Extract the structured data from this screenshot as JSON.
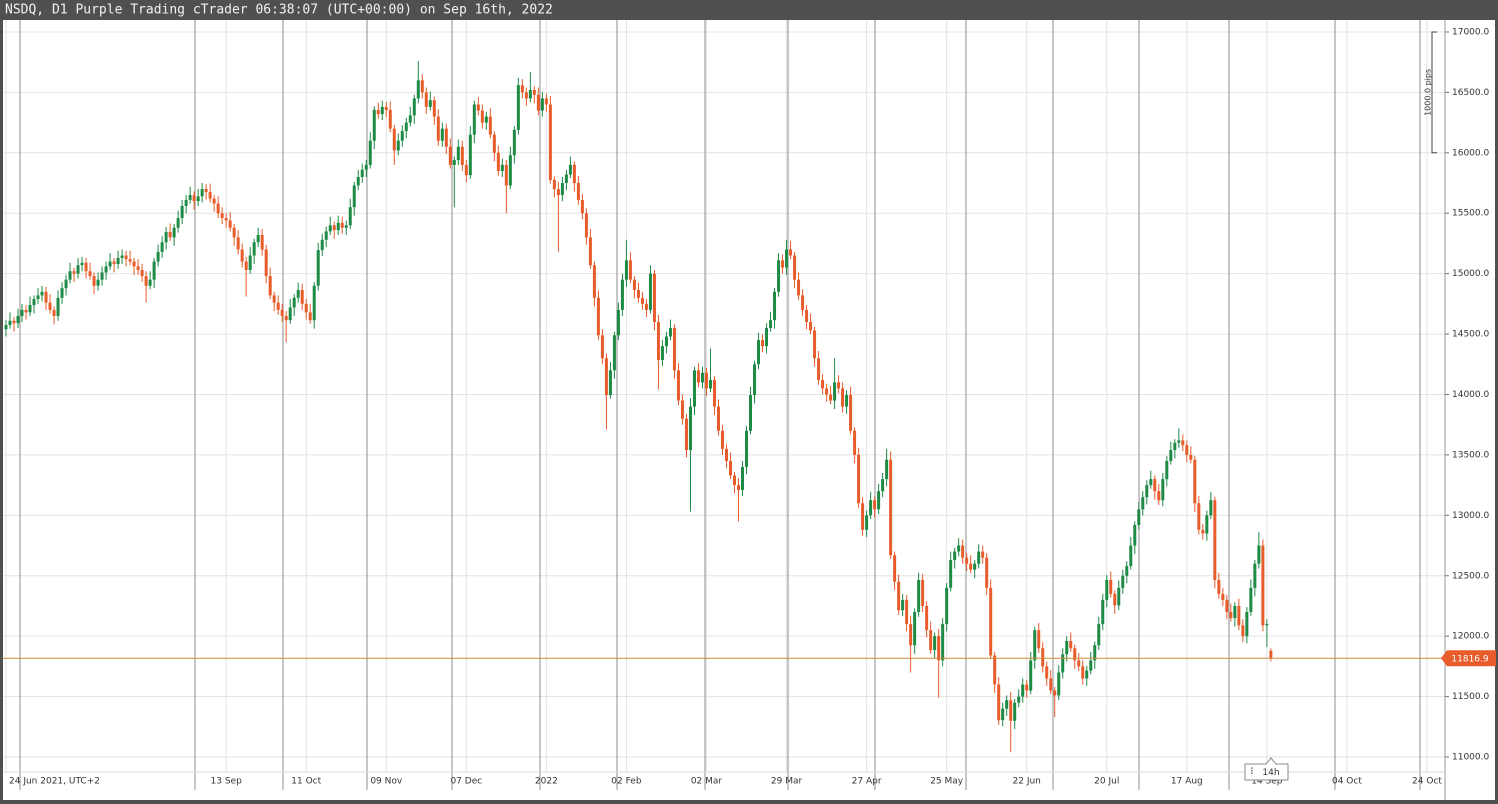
{
  "chart_data": {
    "type": "candlestick",
    "title": "NSDQ, D1 Purple Trading cTrader 06:38:07 (UTC+00:00) on Sep 16th, 2022",
    "colors": {
      "up": "#1d8a45",
      "down": "#e85c2b",
      "last_price": "#d08a36"
    },
    "grid": true,
    "xlim": [
      -0.75,
      359.5
    ],
    "ylim": [
      10876,
      17099
    ],
    "yticks": [
      {
        "value": 17000,
        "label": "17000.0"
      },
      {
        "value": 16500,
        "label": "16500.0"
      },
      {
        "value": 16000,
        "label": "16000.0"
      },
      {
        "value": 15500,
        "label": "15500.0"
      },
      {
        "value": 15000,
        "label": "15000.0"
      },
      {
        "value": 14500,
        "label": "14500.0"
      },
      {
        "value": 14000,
        "label": "14000.0"
      },
      {
        "value": 13500,
        "label": "13500.0"
      },
      {
        "value": 13000,
        "label": "13000.0"
      },
      {
        "value": 12500,
        "label": "12500.0"
      },
      {
        "value": 12000,
        "label": "12000.0"
      },
      {
        "value": 11500,
        "label": "11500.0"
      },
      {
        "value": 11000,
        "label": "11000.0"
      }
    ],
    "xticks": [
      {
        "value": 0,
        "label": "24 Jun 2021, UTC+2"
      },
      {
        "value": 55,
        "label": "13 Sep"
      },
      {
        "value": 75,
        "label": "11 Oct"
      },
      {
        "value": 95,
        "label": "09 Nov"
      },
      {
        "value": 115,
        "label": "07 Dec"
      },
      {
        "value": 135,
        "label": "2022"
      },
      {
        "value": 155,
        "label": "02 Feb"
      },
      {
        "value": 175,
        "label": "02 Mar"
      },
      {
        "value": 195,
        "label": "29 Mar"
      },
      {
        "value": 215,
        "label": "27 Apr"
      },
      {
        "value": 235,
        "label": "25 May"
      },
      {
        "value": 255,
        "label": "22 Jun"
      },
      {
        "value": 275,
        "label": "20 Jul"
      },
      {
        "value": 295,
        "label": "17 Aug"
      },
      {
        "value": 315,
        "label": "14 Sep"
      },
      {
        "value": 335,
        "label": "04 Oct"
      },
      {
        "value": 355,
        "label": "24 Oct"
      }
    ],
    "last_price": 11816.9,
    "scale_label": "1000.0 pips",
    "countdown": "14h",
    "open": [
      14540,
      14575,
      14610,
      14590,
      14650,
      14700,
      14680,
      14740,
      14790,
      14820,
      14850,
      14760,
      14700,
      14650,
      14800,
      14880,
      14950,
      15020,
      15000,
      15070,
      15090,
      15020,
      14980,
      14900,
      14950,
      15010,
      15060,
      15100,
      15080,
      15130,
      15150,
      15120,
      15100,
      15060,
      15030,
      14980,
      14900,
      14950,
      15100,
      15180,
      15260,
      15345,
      15300,
      15380,
      15460,
      15560,
      15610,
      15650,
      15600,
      15640,
      15700,
      15675,
      15620,
      15580,
      15500,
      15460,
      15440,
      15380,
      15300,
      15200,
      15100,
      15030,
      15150,
      15260,
      15320,
      15200,
      14980,
      14820,
      14760,
      14700,
      14650,
      14615,
      14720,
      14800,
      14865,
      14750,
      14680,
      14615,
      14900,
      15195,
      15280,
      15350,
      15400,
      15360,
      15420,
      15380,
      15400,
      15550,
      15730,
      15800,
      15860,
      15900,
      16100,
      16355,
      16320,
      16380,
      16355,
      16200,
      16020,
      16100,
      16180,
      16250,
      16310,
      16450,
      16600,
      16500,
      16380,
      16435,
      16300,
      16100,
      16200,
      16050,
      15900,
      15940,
      16050,
      15900,
      15815,
      16150,
      16400,
      16350,
      16250,
      16300,
      16150,
      16000,
      15850,
      15900,
      15730,
      15980,
      16190,
      16560,
      16500,
      16450,
      16520,
      16480,
      16350,
      16450,
      16400,
      15775,
      15700,
      15650,
      15750,
      15820,
      15900,
      15750,
      15610,
      15500,
      15300,
      15070,
      14800,
      14490,
      14300,
      13995,
      14200,
      14490,
      14700,
      14950,
      15110,
      14950,
      14865,
      14800,
      14750,
      14700,
      15000,
      14600,
      14285,
      14400,
      14480,
      14550,
      14200,
      13950,
      13800,
      13540,
      13900,
      14200,
      14100,
      14180,
      14050,
      14120,
      13900,
      13700,
      13550,
      13450,
      13330,
      13250,
      13210,
      13400,
      13700,
      13995,
      14250,
      14450,
      14400,
      14550,
      14615,
      14850,
      15110,
      15050,
      15200,
      15150,
      14950,
      14820,
      14700,
      14600,
      14530,
      14300,
      14120,
      14050,
      14000,
      13950,
      14100,
      14050,
      13900,
      13995,
      13700,
      13500,
      13100,
      12880,
      13000,
      13125,
      13050,
      13200,
      13300,
      13460,
      12670,
      12450,
      12215,
      12300,
      12100,
      11925,
      12200,
      12465,
      12250,
      12050,
      11885,
      12000,
      11800,
      12100,
      12400,
      12630,
      12700,
      12750,
      12650,
      12600,
      12550,
      12600,
      12700,
      12650,
      12400,
      11840,
      11600,
      11305,
      11400,
      11470,
      11300,
      11450,
      11500,
      11600,
      11550,
      11800,
      12050,
      11900,
      11750,
      11650,
      11550,
      11510,
      11700,
      11850,
      11960,
      11900,
      11800,
      11750,
      11650,
      11715,
      11800,
      11925,
      12100,
      12300,
      12465,
      12350,
      12255,
      12400,
      12500,
      12580,
      12750,
      12920,
      13050,
      13150,
      13250,
      13300,
      13200,
      13125,
      13300,
      13450,
      13540,
      13600,
      13620,
      13580,
      13500,
      13460,
      13100,
      12880,
      12850,
      13000,
      13125,
      12465,
      12350,
      12300,
      12200,
      12150,
      12250,
      12090,
      12000,
      12200,
      12400,
      12600,
      12750,
      12090,
      11880
    ],
    "high": [
      14615,
      14680,
      14640,
      14710,
      14750,
      14740,
      14810,
      14820,
      14880,
      14900,
      14890,
      14830,
      14730,
      14860,
      14930,
      14990,
      15090,
      15050,
      15130,
      15140,
      15130,
      15090,
      15010,
      15010,
      15060,
      15100,
      15170,
      15130,
      15190,
      15200,
      15190,
      15190,
      15130,
      15120,
      15080,
      15020,
      15020,
      15130,
      15240,
      15310,
      15385,
      15415,
      15410,
      15520,
      15610,
      15650,
      15720,
      15680,
      15700,
      15750,
      15740,
      15745,
      15650,
      15640,
      15550,
      15500,
      15510,
      15410,
      15360,
      15250,
      15140,
      15220,
      15290,
      15380,
      15370,
      15240,
      15050,
      14850,
      14820,
      14750,
      14690,
      14790,
      14830,
      14925,
      14915,
      14790,
      14750,
      14930,
      15255,
      15330,
      15390,
      15470,
      15430,
      15480,
      15470,
      15440,
      15620,
      15760,
      15860,
      15910,
      15940,
      16170,
      16385,
      16415,
      16430,
      16420,
      16425,
      16230,
      16160,
      16230,
      16290,
      16380,
      16480,
      16760,
      16650,
      16540,
      16505,
      16465,
      16360,
      16250,
      16240,
      16120,
      15970,
      16110,
      16100,
      15940,
      16220,
      16430,
      16460,
      16400,
      16340,
      16370,
      16180,
      16060,
      15950,
      15940,
      16050,
      16220,
      16620,
      16610,
      16540,
      16670,
      16550,
      16540,
      16500,
      16490,
      16470,
      15805,
      15760,
      15800,
      15860,
      15970,
      15930,
      15810,
      15660,
      15540,
      15370,
      15100,
      14860,
      14540,
      14340,
      14270,
      14520,
      14760,
      15000,
      15280,
      15180,
      14980,
      14925,
      14850,
      14790,
      15070,
      15030,
      14660,
      14450,
      14520,
      14620,
      14580,
      14260,
      14000,
      13840,
      13970,
      14230,
      14260,
      14230,
      14220,
      14380,
      14150,
      13960,
      13750,
      13590,
      13520,
      13360,
      13310,
      13450,
      13740,
      14065,
      14280,
      14510,
      14500,
      14590,
      14685,
      14880,
      15170,
      15160,
      15280,
      15270,
      15180,
      15010,
      14870,
      14740,
      14670,
      14560,
      14360,
      14170,
      14090,
      14070,
      14300,
      14160,
      14100,
      14035,
      14065,
      13730,
      13560,
      13150,
      13040,
      13195,
      13155,
      13260,
      13350,
      13550,
      13530,
      12700,
      12510,
      12350,
      12340,
      12170,
      12230,
      12525,
      12515,
      12290,
      12120,
      12030,
      12060,
      12150,
      12440,
      12700,
      12730,
      12810,
      12800,
      12690,
      12670,
      12630,
      12760,
      12750,
      12690,
      12470,
      11870,
      11660,
      11450,
      11510,
      11540,
      11480,
      11560,
      11650,
      11640,
      11870,
      12080,
      12110,
      11950,
      11790,
      11720,
      11580,
      11760,
      11900,
      12000,
      12030,
      11930,
      11860,
      11800,
      11755,
      11870,
      11955,
      12160,
      12350,
      12505,
      12535,
      12380,
      12460,
      12550,
      12620,
      12820,
      12950,
      13110,
      13200,
      13290,
      13370,
      13330,
      13260,
      13350,
      13490,
      13610,
      13630,
      13720,
      13670,
      13620,
      13570,
      13490,
      13160,
      12930,
      13040,
      13195,
      13155,
      12525,
      12400,
      12340,
      12270,
      12280,
      12310,
      12140,
      12240,
      12470,
      12630,
      12860,
      12800,
      12140,
      11900
    ],
    "low": [
      14480,
      14545,
      14520,
      14550,
      14600,
      14620,
      14650,
      14670,
      14750,
      14770,
      14700,
      14670,
      14580,
      14610,
      14750,
      14820,
      14920,
      14930,
      14960,
      15020,
      14960,
      14950,
      14830,
      14860,
      14900,
      14950,
      15030,
      15010,
      15040,
      15080,
      15060,
      15070,
      14990,
      14990,
      14930,
      14760,
      14870,
      14880,
      15060,
      15130,
      15200,
      15270,
      15230,
      15340,
      15410,
      15500,
      15580,
      15530,
      15560,
      15590,
      15615,
      15590,
      15510,
      15460,
      15410,
      15380,
      15350,
      15230,
      15160,
      15050,
      14810,
      15000,
      15080,
      15220,
      15150,
      14920,
      14790,
      14690,
      14660,
      14600,
      14430,
      14585,
      14650,
      14760,
      14700,
      14620,
      14585,
      14545,
      14860,
      15145,
      15220,
      15320,
      15290,
      15320,
      15330,
      15320,
      15370,
      15480,
      15690,
      15750,
      15800,
      15870,
      16030,
      16280,
      16270,
      16295,
      16170,
      15900,
      15980,
      16050,
      16120,
      16220,
      16240,
      16410,
      16450,
      16320,
      16350,
      16230,
      16060,
      16050,
      15990,
      15870,
      15550,
      15900,
      15850,
      15755,
      15785,
      16080,
      16310,
      16200,
      16190,
      16120,
      15930,
      15810,
      15800,
      15500,
      15700,
      15910,
      16150,
      16450,
      16390,
      16420,
      16410,
      16310,
      16300,
      16340,
      15745,
      15630,
      15180,
      15600,
      15690,
      15790,
      15680,
      15570,
      15450,
      15240,
      15040,
      14730,
      14450,
      14250,
      13710,
      13965,
      14130,
      14450,
      14650,
      14890,
      14920,
      14795,
      14760,
      14700,
      14640,
      14670,
      14530,
      14040,
      14235,
      14340,
      14450,
      14130,
      13910,
      13750,
      13480,
      13030,
      13830,
      14060,
      14050,
      13990,
      14020,
      13830,
      13660,
      13500,
      13390,
      13300,
      13180,
      12950,
      13160,
      13340,
      13670,
      13925,
      14210,
      14350,
      14340,
      14520,
      14545,
      14810,
      15000,
      14990,
      15120,
      14880,
      14780,
      14650,
      14540,
      14500,
      14230,
      14080,
      14000,
      13940,
      13920,
      13880,
      14010,
      13850,
      13840,
      13670,
      13430,
      13060,
      12830,
      12820,
      12970,
      12980,
      13010,
      13150,
      13240,
      12640,
      12380,
      12175,
      12165,
      12040,
      11700,
      11855,
      12160,
      12200,
      11990,
      11855,
      11815,
      11490,
      11750,
      12040,
      12370,
      12560,
      12660,
      12600,
      12540,
      12520,
      12480,
      12560,
      12600,
      12340,
      11810,
      11530,
      11265,
      11255,
      11340,
      11040,
      11230,
      11410,
      11450,
      11490,
      11520,
      11730,
      11860,
      11700,
      11590,
      11520,
      11330,
      11470,
      11650,
      11790,
      11870,
      11730,
      11710,
      11600,
      11590,
      11685,
      11730,
      11885,
      12050,
      12240,
      12320,
      12185,
      12215,
      12350,
      12440,
      12550,
      12680,
      12880,
      13000,
      13090,
      13220,
      13130,
      13085,
      13075,
      13240,
      13420,
      13470,
      13560,
      13530,
      13440,
      13430,
      13030,
      12840,
      12800,
      12790,
      12970,
      12395,
      12310,
      12250,
      12140,
      12120,
      12080,
      12050,
      11950,
      11940,
      12170,
      12330,
      12560,
      12040,
      11910,
      11790
    ],
    "close": [
      14575,
      14610,
      14590,
      14650,
      14700,
      14680,
      14740,
      14790,
      14820,
      14850,
      14760,
      14700,
      14650,
      14800,
      14880,
      14950,
      15020,
      15000,
      15070,
      15090,
      15020,
      14980,
      14900,
      14950,
      15010,
      15060,
      15100,
      15080,
      15130,
      15150,
      15120,
      15100,
      15060,
      15030,
      14980,
      14900,
      14950,
      15100,
      15180,
      15260,
      15345,
      15300,
      15380,
      15460,
      15560,
      15610,
      15650,
      15600,
      15640,
      15700,
      15675,
      15620,
      15580,
      15500,
      15460,
      15440,
      15380,
      15300,
      15200,
      15100,
      15030,
      15150,
      15260,
      15320,
      15200,
      14980,
      14820,
      14760,
      14700,
      14650,
      14615,
      14720,
      14800,
      14865,
      14750,
      14680,
      14615,
      14900,
      15195,
      15280,
      15350,
      15400,
      15360,
      15420,
      15380,
      15400,
      15550,
      15730,
      15800,
      15860,
      15900,
      16100,
      16355,
      16320,
      16380,
      16355,
      16200,
      16020,
      16100,
      16180,
      16250,
      16310,
      16450,
      16600,
      16500,
      16380,
      16435,
      16300,
      16100,
      16200,
      16050,
      15900,
      15940,
      16050,
      15900,
      15815,
      16150,
      16400,
      16350,
      16250,
      16300,
      16150,
      16000,
      15850,
      15900,
      15730,
      15980,
      16190,
      16560,
      16500,
      16450,
      16520,
      16480,
      16350,
      16450,
      16400,
      15775,
      15700,
      15650,
      15750,
      15820,
      15900,
      15750,
      15610,
      15500,
      15300,
      15070,
      14800,
      14490,
      14300,
      13995,
      14200,
      14490,
      14700,
      14950,
      15110,
      14950,
      14865,
      14800,
      14750,
      14700,
      15000,
      14600,
      14285,
      14400,
      14480,
      14550,
      14200,
      13950,
      13800,
      13540,
      13900,
      14200,
      14100,
      14180,
      14050,
      14120,
      13900,
      13700,
      13550,
      13450,
      13330,
      13250,
      13210,
      13400,
      13700,
      13995,
      14250,
      14450,
      14400,
      14550,
      14615,
      14850,
      15110,
      15050,
      15200,
      15150,
      14950,
      14820,
      14700,
      14600,
      14530,
      14300,
      14120,
      14050,
      14000,
      13950,
      14100,
      14050,
      13900,
      13995,
      13700,
      13500,
      13100,
      12880,
      13000,
      13125,
      13050,
      13200,
      13300,
      13460,
      12670,
      12450,
      12215,
      12300,
      12100,
      11925,
      12200,
      12465,
      12250,
      12050,
      11885,
      12000,
      11800,
      12100,
      12400,
      12630,
      12700,
      12750,
      12650,
      12600,
      12550,
      12600,
      12700,
      12650,
      12400,
      11840,
      11600,
      11305,
      11400,
      11470,
      11300,
      11450,
      11500,
      11600,
      11550,
      11800,
      12050,
      11900,
      11750,
      11650,
      11550,
      11510,
      11700,
      11850,
      11960,
      11900,
      11800,
      11750,
      11650,
      11715,
      11800,
      11925,
      12100,
      12300,
      12465,
      12350,
      12255,
      12400,
      12500,
      12580,
      12750,
      12920,
      13050,
      13150,
      13250,
      13300,
      13200,
      13125,
      13300,
      13450,
      13540,
      13600,
      13620,
      13580,
      13500,
      13460,
      13100,
      12880,
      12850,
      13000,
      13125,
      12465,
      12350,
      12300,
      12200,
      12150,
      12250,
      12090,
      12000,
      12200,
      12400,
      12600,
      12750,
      12090,
      12100,
      11817
    ]
  }
}
